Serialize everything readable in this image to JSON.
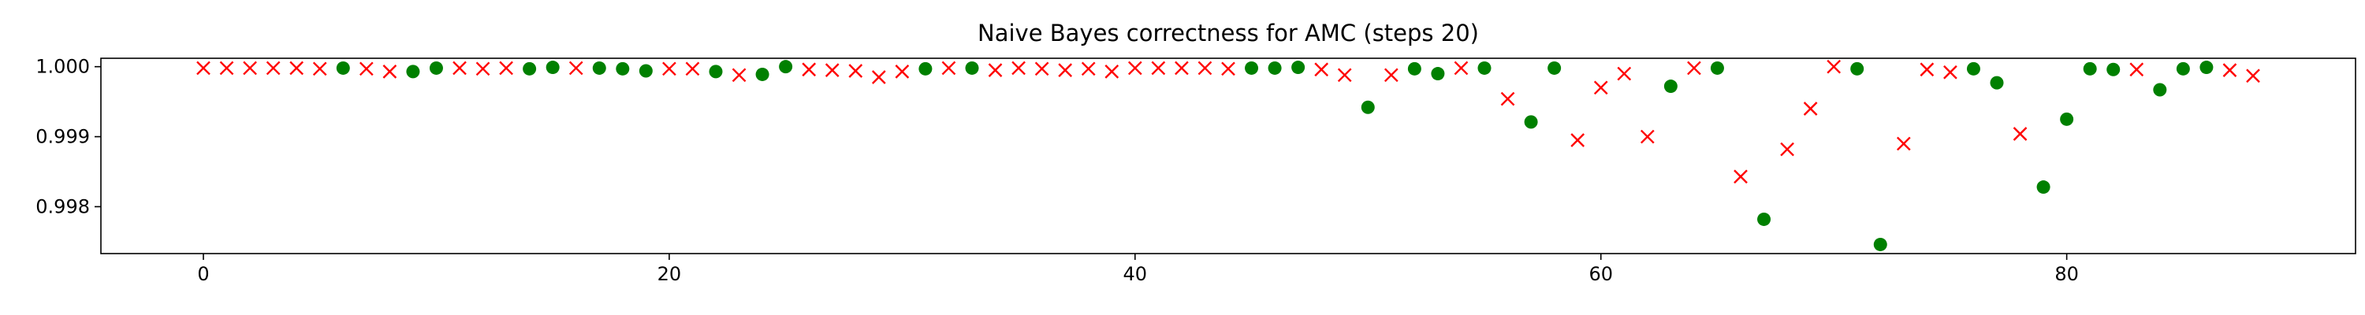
{
  "chart_data": {
    "type": "scatter",
    "title": "Naive Bayes correctness for AMC (steps 20)",
    "xlabel": "",
    "ylabel": "",
    "xlim": [
      -4.4,
      92.4
    ],
    "ylim": [
      0.99733,
      1.00012
    ],
    "xticks": [
      0,
      20,
      40,
      60,
      80
    ],
    "yticks": [
      0.998,
      0.999,
      1.0
    ],
    "ytick_labels": [
      "0.998",
      "0.999",
      "1.000"
    ],
    "grid": false,
    "legend": "none",
    "colors": {
      "circle": "#008000",
      "cross": "#ff0000"
    },
    "series": [
      {
        "marker": "circle",
        "color": "#008000",
        "points": [
          [
            6,
            0.99998
          ],
          [
            9,
            0.99993
          ],
          [
            10,
            0.99998
          ],
          [
            14,
            0.99997
          ],
          [
            15,
            0.99999
          ],
          [
            17,
            0.99998
          ],
          [
            18,
            0.99997
          ],
          [
            19,
            0.99994
          ],
          [
            22,
            0.99993
          ],
          [
            24,
            0.99989
          ],
          [
            25,
            1.0
          ],
          [
            31,
            0.99997
          ],
          [
            33,
            0.99998
          ],
          [
            45,
            0.99998
          ],
          [
            46,
            0.99998
          ],
          [
            47,
            0.99999
          ],
          [
            50,
            0.99942
          ],
          [
            52,
            0.99997
          ],
          [
            53,
            0.9999
          ],
          [
            55,
            0.99998
          ],
          [
            57,
            0.99921
          ],
          [
            58,
            0.99998
          ],
          [
            63,
            0.99972
          ],
          [
            65,
            0.99998
          ],
          [
            67,
            0.99782
          ],
          [
            71,
            0.99997
          ],
          [
            72,
            0.99746
          ],
          [
            76,
            0.99997
          ],
          [
            77,
            0.99977
          ],
          [
            79,
            0.99828
          ],
          [
            80,
            0.99925
          ],
          [
            81,
            0.99997
          ],
          [
            82,
            0.99996
          ],
          [
            84,
            0.99967
          ],
          [
            85,
            0.99997
          ],
          [
            86,
            0.99999
          ]
        ]
      },
      {
        "marker": "cross",
        "color": "#ff0000",
        "points": [
          [
            0,
            0.99998
          ],
          [
            1,
            0.99998
          ],
          [
            2,
            0.99998
          ],
          [
            3,
            0.99998
          ],
          [
            4,
            0.99998
          ],
          [
            5,
            0.99997
          ],
          [
            7,
            0.99997
          ],
          [
            8,
            0.99993
          ],
          [
            11,
            0.99998
          ],
          [
            12,
            0.99997
          ],
          [
            13,
            0.99998
          ],
          [
            16,
            0.99998
          ],
          [
            20,
            0.99997
          ],
          [
            21,
            0.99997
          ],
          [
            23,
            0.99988
          ],
          [
            26,
            0.99996
          ],
          [
            27,
            0.99995
          ],
          [
            28,
            0.99994
          ],
          [
            29,
            0.99985
          ],
          [
            30,
            0.99993
          ],
          [
            32,
            0.99998
          ],
          [
            34,
            0.99995
          ],
          [
            35,
            0.99998
          ],
          [
            36,
            0.99997
          ],
          [
            37,
            0.99995
          ],
          [
            38,
            0.99997
          ],
          [
            39,
            0.99993
          ],
          [
            40,
            0.99998
          ],
          [
            41,
            0.99998
          ],
          [
            42,
            0.99998
          ],
          [
            43,
            0.99998
          ],
          [
            44,
            0.99997
          ],
          [
            48,
            0.99996
          ],
          [
            49,
            0.99988
          ],
          [
            51,
            0.99988
          ],
          [
            54,
            0.99998
          ],
          [
            56,
            0.99954
          ],
          [
            59,
            0.99895
          ],
          [
            60,
            0.9997
          ],
          [
            61,
            0.9999
          ],
          [
            62,
            0.999
          ],
          [
            64,
            0.99998
          ],
          [
            66,
            0.99843
          ],
          [
            68,
            0.99882
          ],
          [
            69,
            0.9994
          ],
          [
            70,
            1.0
          ],
          [
            73,
            0.9989
          ],
          [
            74,
            0.99996
          ],
          [
            75,
            0.99992
          ],
          [
            78,
            0.99904
          ],
          [
            83,
            0.99996
          ],
          [
            87,
            0.99995
          ],
          [
            88,
            0.99987
          ]
        ]
      }
    ]
  }
}
